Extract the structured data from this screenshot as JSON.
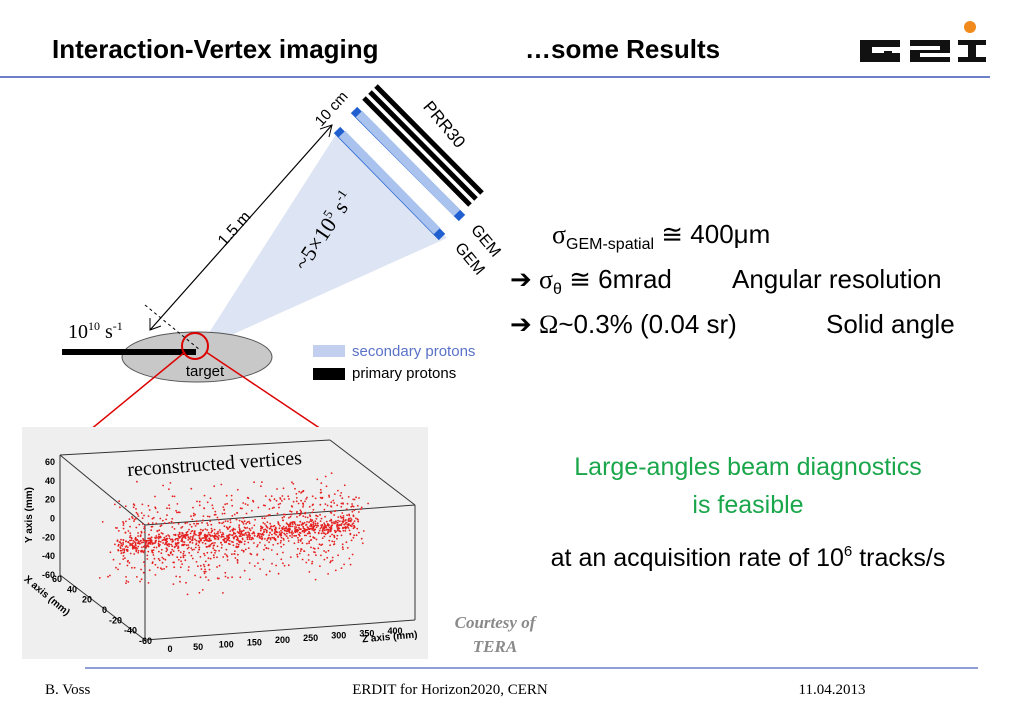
{
  "header": {
    "title": "Interaction-Vertex imaging",
    "subtitle": "…some Results"
  },
  "diagram": {
    "distance": "1.5 m",
    "detector_width": "10 cm",
    "detector": "PRR30",
    "gem_labels": [
      "GEM",
      "GEM"
    ],
    "secondary_rate": {
      "base": "~5×10",
      "exp": "5",
      "unit": " s",
      "unit_exp": "-1"
    },
    "beam_rate": {
      "base": "10",
      "exp": "10",
      "unit": " s",
      "unit_exp": "-1"
    },
    "target": "target",
    "legend": [
      "secondary protons",
      "primary protons"
    ]
  },
  "plot": {
    "title": "reconstructed vertices",
    "y_axis": "Y axis (mm)",
    "x_axis": "X axis (mm)",
    "z_axis": "Z axis (mm)",
    "yticks": [
      60,
      40,
      20,
      0,
      -20,
      -40,
      -60
    ],
    "xticks": [
      60,
      40,
      20,
      0,
      -20,
      -40,
      -60
    ],
    "zticks": [
      0,
      50,
      100,
      150,
      200,
      250,
      300,
      350,
      400
    ]
  },
  "results": [
    {
      "symbol": "σ",
      "sub": "GEM-spatial",
      "rest": " ≅ 400μm"
    },
    {
      "arrow": "➔ ",
      "symbol": "σ",
      "sub": "θ",
      "rest": " ≅ 6mrad",
      "label": "Angular resolution"
    },
    {
      "arrow": "➔ ",
      "symbol": "Ω",
      "rest": "~0.3% (0.04 sr)",
      "label": "Solid angle"
    }
  ],
  "conclusion": [
    "Large-angles beam diagnostics",
    "is feasible"
  ],
  "rate": {
    "text": "at an acquisition rate of 10",
    "exp": "6",
    "rest": " tracks/s"
  },
  "courtesy": [
    "Courtesy of",
    "TERA"
  ],
  "footer": {
    "author": "B. Voss",
    "event": "ERDIT for Horizon2020, CERN",
    "date": "11.04.2013"
  }
}
